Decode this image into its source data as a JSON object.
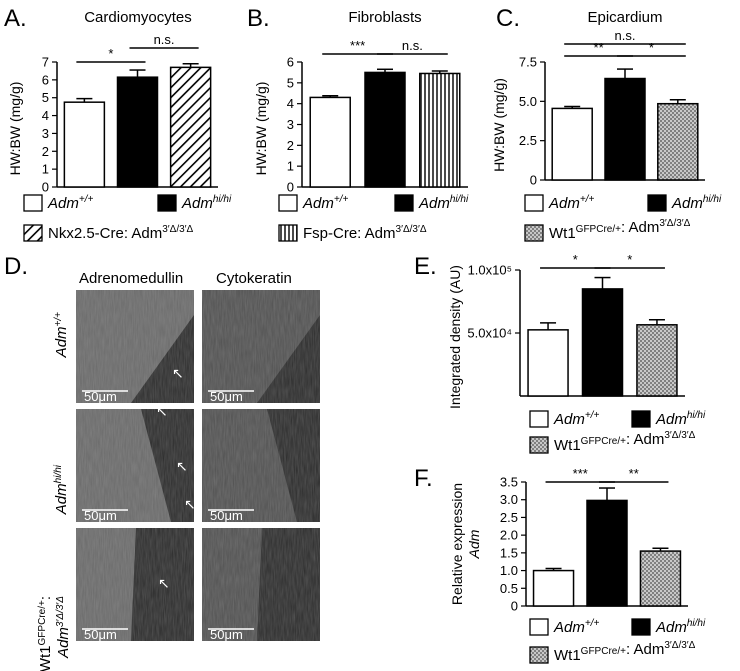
{
  "colors": {
    "bar_wt": "#ffffff",
    "bar_hihi": "#000000",
    "hatch_diag": "#000000",
    "hatch_vert": "#555555",
    "dots": "#7a7a7a",
    "micrograph_bg": "#2a2a2a",
    "micrograph_tissue": "#707070"
  },
  "legend_labels": {
    "wt": "Adm+/+",
    "hihi": "Admhi/hi",
    "nkx": "Nkx2.5-Cre: Adm3′Δ/3′Δ",
    "fsp": "Fsp-Cre: Adm3′Δ/3′Δ",
    "wt1": "Wt1GFPCre/+: Adm3′Δ/3′Δ"
  },
  "chart_data": [
    {
      "panel": "A.",
      "type": "bar",
      "title": "Cardiomyocytes",
      "ylabel": "HW:BW (mg/g)",
      "categories": [
        "Adm+/+",
        "Admhi/hi",
        "Nkx2.5-Cre: Adm3′Δ/3′Δ"
      ],
      "values": [
        4.75,
        6.15,
        6.7
      ],
      "errors": [
        0.2,
        0.4,
        0.2
      ],
      "ylim": [
        0,
        7
      ],
      "yticks": [
        "0",
        "1",
        "2",
        "3",
        "4",
        "5",
        "6",
        "7"
      ],
      "significance": [
        {
          "from": 0,
          "to": 1,
          "label": "*"
        },
        {
          "from": 1,
          "to": 2,
          "label": "n.s."
        }
      ]
    },
    {
      "panel": "B.",
      "type": "bar",
      "title": "Fibroblasts",
      "ylabel": "HW:BW (mg/g)",
      "categories": [
        "Adm+/+",
        "Admhi/hi",
        "Fsp-Cre: Adm3′Δ/3′Δ"
      ],
      "values": [
        4.3,
        5.5,
        5.45
      ],
      "errors": [
        0.08,
        0.15,
        0.12
      ],
      "ylim": [
        0,
        6
      ],
      "yticks": [
        "0",
        "1",
        "2",
        "3",
        "4",
        "5",
        "6"
      ],
      "significance": [
        {
          "from": 0,
          "to": 1,
          "label": "***"
        },
        {
          "from": 1,
          "to": 2,
          "label": "n.s."
        }
      ]
    },
    {
      "panel": "C.",
      "type": "bar",
      "title": "Epicardium",
      "ylabel": "HW:BW (mg/g)",
      "categories": [
        "Adm+/+",
        "Admhi/hi",
        "Wt1GFPCre/+: Adm3′Δ/3′Δ"
      ],
      "values": [
        4.55,
        6.45,
        4.85
      ],
      "errors": [
        0.12,
        0.6,
        0.25
      ],
      "ylim": [
        0,
        7.5
      ],
      "yticks": [
        "0",
        "2.5",
        "5.0",
        "7.5"
      ],
      "significance": [
        {
          "from": 0,
          "to": 2,
          "label": "n.s."
        },
        {
          "from": 0,
          "to": 1,
          "label": "**"
        },
        {
          "from": 1,
          "to": 2,
          "label": "*"
        }
      ]
    },
    {
      "panel": "E.",
      "type": "bar",
      "ylabel": "Integrated density (AU)",
      "categories": [
        "Adm+/+",
        "Admhi/hi",
        "Wt1GFPCre/+: Adm3′Δ/3′Δ"
      ],
      "values": [
        52500,
        85000,
        56500
      ],
      "errors": [
        5500,
        9000,
        4000
      ],
      "ylim": [
        0,
        100000
      ],
      "yticks": [
        "5.0x10⁴",
        "1.0x10⁵"
      ],
      "significance": [
        {
          "from": 0,
          "to": 1,
          "label": "*"
        },
        {
          "from": 1,
          "to": 2,
          "label": "*"
        }
      ]
    },
    {
      "panel": "F.",
      "type": "bar",
      "ylabel": "Relative expression Adm",
      "categories": [
        "Adm+/+",
        "Admhi/hi",
        "Wt1GFPCre/+: Adm3′Δ/3′Δ"
      ],
      "values": [
        1.0,
        2.98,
        1.55
      ],
      "errors": [
        0.06,
        0.35,
        0.08
      ],
      "ylim": [
        0,
        3.5
      ],
      "yticks": [
        "0",
        "0.5",
        "1.0",
        "1.5",
        "2.0",
        "2.5",
        "3.0",
        "3.5"
      ],
      "significance": [
        {
          "from": 0,
          "to": 1,
          "label": "***"
        },
        {
          "from": 1,
          "to": 2,
          "label": "**"
        }
      ]
    }
  ],
  "panel_d": {
    "panel": "D.",
    "columns": [
      "Adrenomedullin",
      "Cytokeratin"
    ],
    "rows": [
      "Adm+/+",
      "Admhi/hi",
      "Wt1GFPCre/+: Adm3′Δ/3′Δ"
    ],
    "scale_bar": "50μm"
  }
}
